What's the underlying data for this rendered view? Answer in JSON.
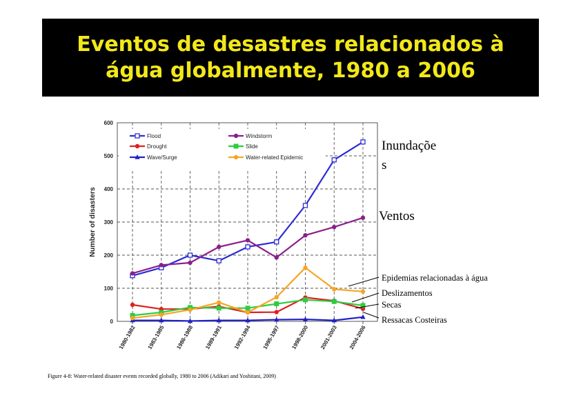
{
  "title": {
    "line1": "Eventos de desastres relacionados à",
    "line2": "água globalmente, 1980 a 2006"
  },
  "caption": "Figure 4-8: Water-related disaster events recorded globally, 1980 to 2006 (Adikari and Yoshitani, 2009)",
  "annotations": {
    "flood_line1": "Inundaçõe",
    "flood_line2": "s",
    "windstorm": "Ventos",
    "epidemic": "Epidemias relacionadas à água",
    "slide": "Deslizamentos",
    "drought": "Secas",
    "wave": "Ressacas Costeiras"
  },
  "chart_data": {
    "type": "line",
    "categories": [
      "1980-1982",
      "1983-1985",
      "1986-1988",
      "1989-1991",
      "1992-1994",
      "1995-1997",
      "1998-2000",
      "2001-2003",
      "2004-2006"
    ],
    "ylabel": "Number of disasters",
    "xlabel": "",
    "ylim": [
      0,
      600
    ],
    "yticks": [
      0,
      100,
      200,
      300,
      400,
      500,
      600
    ],
    "grid": true,
    "legend_position": "top-left",
    "series": [
      {
        "name": "Flood",
        "color": "#2b2bd6",
        "marker": "square-open",
        "values": [
          138,
          162,
          200,
          183,
          225,
          240,
          350,
          488,
          542
        ]
      },
      {
        "name": "Windstorm",
        "color": "#8b1f8b",
        "marker": "circle",
        "values": [
          145,
          170,
          177,
          225,
          245,
          193,
          260,
          285,
          313
        ]
      },
      {
        "name": "Drought",
        "color": "#e02020",
        "marker": "circle",
        "values": [
          50,
          37,
          37,
          45,
          27,
          28,
          72,
          62,
          38
        ]
      },
      {
        "name": "Slide",
        "color": "#2ecc40",
        "marker": "square",
        "values": [
          18,
          27,
          42,
          40,
          40,
          53,
          65,
          60,
          48
        ]
      },
      {
        "name": "Wave/Surge",
        "color": "#2020c8",
        "marker": "triangle",
        "values": [
          3,
          3,
          1,
          3,
          3,
          5,
          6,
          3,
          13
        ]
      },
      {
        "name": "Water-related Epidemic",
        "color": "#f5a623",
        "marker": "circle",
        "values": [
          10,
          20,
          35,
          57,
          27,
          73,
          162,
          97,
          90
        ]
      }
    ]
  }
}
